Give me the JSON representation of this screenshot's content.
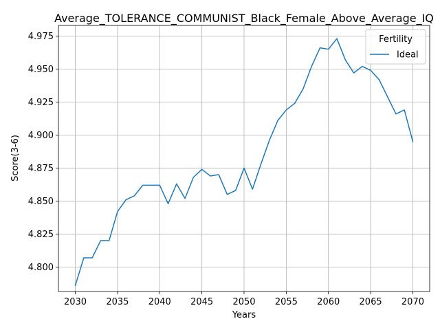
{
  "chart_data": {
    "type": "line",
    "title": "Average_TOLERANCE_COMMUNIST_Black_Female_Above_Average_IQ",
    "xlabel": "Years",
    "ylabel": "Score(3-6)",
    "xlim": [
      2028.0,
      2072.0
    ],
    "ylim": [
      4.7815,
      4.983
    ],
    "xticks": [
      2030,
      2035,
      2040,
      2045,
      2050,
      2055,
      2060,
      2065,
      2070
    ],
    "yticks": [
      4.8,
      4.825,
      4.85,
      4.875,
      4.9,
      4.925,
      4.95,
      4.975
    ],
    "ytick_labels": [
      "4.800",
      "4.825",
      "4.850",
      "4.875",
      "4.900",
      "4.925",
      "4.950",
      "4.975"
    ],
    "grid": true,
    "legend": {
      "title": "Fertility",
      "placement": "upper right"
    },
    "x": [
      2030,
      2031,
      2032,
      2033,
      2034,
      2035,
      2036,
      2037,
      2038,
      2039,
      2040,
      2041,
      2042,
      2043,
      2044,
      2045,
      2046,
      2047,
      2048,
      2049,
      2050,
      2051,
      2052,
      2053,
      2054,
      2055,
      2056,
      2057,
      2058,
      2059,
      2060,
      2061,
      2062,
      2063,
      2064,
      2065,
      2066,
      2067,
      2068,
      2069,
      2070
    ],
    "series": [
      {
        "name": "Ideal",
        "color": "#1f77b4",
        "values": [
          4.786,
          4.807,
          4.807,
          4.82,
          4.82,
          4.842,
          4.851,
          4.854,
          4.862,
          4.862,
          4.862,
          4.848,
          4.863,
          4.852,
          4.868,
          4.874,
          4.869,
          4.87,
          4.855,
          4.858,
          4.875,
          4.859,
          4.878,
          4.896,
          4.911,
          4.919,
          4.924,
          4.935,
          4.952,
          4.966,
          4.965,
          4.973,
          4.957,
          4.947,
          4.952,
          4.949,
          4.942,
          4.929,
          4.916,
          4.919,
          4.895
        ]
      }
    ]
  }
}
